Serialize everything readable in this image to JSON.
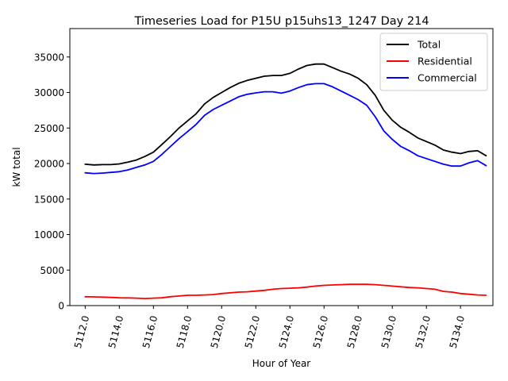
{
  "chart_data": {
    "type": "line",
    "title": "Timeseries Load for P15U p15uhs13_1247  Day 214",
    "xlabel": "Hour of Year",
    "ylabel": "kW total",
    "xlim": [
      5111.1,
      5135.9
    ],
    "ylim": [
      0,
      39000
    ],
    "grid": false,
    "legend_position": "top-right",
    "x_ticks": [
      5112,
      5114,
      5116,
      5118,
      5120,
      5122,
      5124,
      5126,
      5128,
      5130,
      5132,
      5134
    ],
    "x_tick_labels": [
      "5112.0",
      "5114.0",
      "5116.0",
      "5118.0",
      "5120.0",
      "5122.0",
      "5124.0",
      "5126.0",
      "5128.0",
      "5130.0",
      "5132.0",
      "5134.0"
    ],
    "y_ticks": [
      0,
      5000,
      10000,
      15000,
      20000,
      25000,
      30000,
      35000
    ],
    "y_tick_labels": [
      "0",
      "5000",
      "10000",
      "15000",
      "20000",
      "25000",
      "30000",
      "35000"
    ],
    "x": [
      5112,
      5112.5,
      5113,
      5113.5,
      5114,
      5114.5,
      5115,
      5115.5,
      5116,
      5116.5,
      5117,
      5117.5,
      5118,
      5118.5,
      5119,
      5119.5,
      5120,
      5120.5,
      5121,
      5121.5,
      5122,
      5122.5,
      5123,
      5123.5,
      5124,
      5124.5,
      5125,
      5125.5,
      5126,
      5126.5,
      5127,
      5127.5,
      5128,
      5128.5,
      5129,
      5129.5,
      5130,
      5130.5,
      5131,
      5131.5,
      5132,
      5132.5,
      5133,
      5133.5,
      5134,
      5134.5,
      5135,
      5135.5
    ],
    "series": [
      {
        "name": "Total",
        "color": "#000000",
        "values": [
          19900,
          19800,
          19850,
          19850,
          19950,
          20200,
          20500,
          21000,
          21600,
          22700,
          23800,
          25000,
          26000,
          27000,
          28400,
          29300,
          30000,
          30700,
          31300,
          31700,
          32000,
          32300,
          32400,
          32400,
          32700,
          33300,
          33800,
          34000,
          34000,
          33500,
          33000,
          32600,
          32000,
          31100,
          29600,
          27500,
          26100,
          25100,
          24400,
          23600,
          23100,
          22600,
          21900,
          21600,
          21400,
          21700,
          21800,
          21100
        ]
      },
      {
        "name": "Residential",
        "color": "#ff0000",
        "values": [
          1250,
          1230,
          1200,
          1150,
          1100,
          1080,
          1050,
          1000,
          1050,
          1100,
          1250,
          1350,
          1450,
          1450,
          1500,
          1550,
          1700,
          1800,
          1900,
          1950,
          2050,
          2150,
          2300,
          2400,
          2450,
          2500,
          2600,
          2750,
          2850,
          2900,
          2950,
          3000,
          3000,
          3000,
          2950,
          2850,
          2750,
          2650,
          2550,
          2500,
          2400,
          2300,
          2000,
          1900,
          1700,
          1600,
          1500,
          1450
        ]
      },
      {
        "name": "Commercial",
        "color": "#0000ff",
        "values": [
          18700,
          18600,
          18650,
          18750,
          18850,
          19100,
          19450,
          19800,
          20300,
          21300,
          22400,
          23500,
          24500,
          25500,
          26800,
          27600,
          28200,
          28800,
          29400,
          29750,
          29950,
          30100,
          30100,
          29900,
          30200,
          30700,
          31100,
          31250,
          31250,
          30800,
          30200,
          29600,
          29000,
          28200,
          26600,
          24600,
          23400,
          22400,
          21800,
          21100,
          20700,
          20300,
          19900,
          19650,
          19650,
          20100,
          20400,
          19700
        ]
      }
    ]
  }
}
